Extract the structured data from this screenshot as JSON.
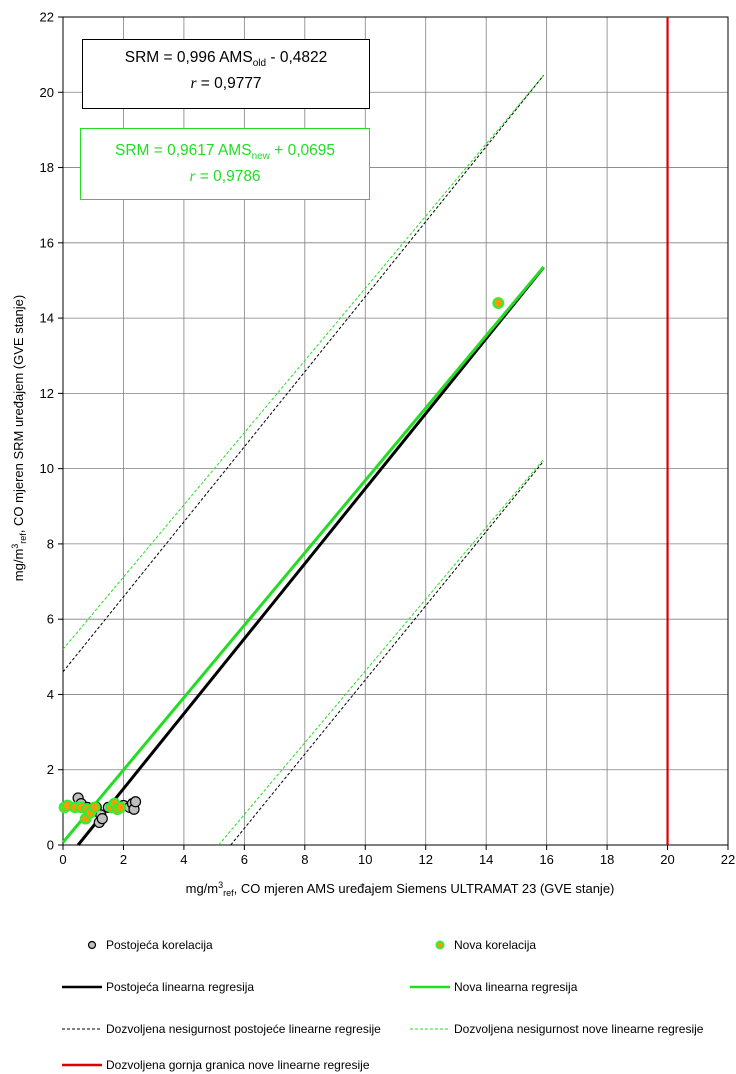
{
  "chart_data": {
    "type": "scatter",
    "xlabel_prefix": "mg/m",
    "xlabel_sup": "3",
    "xlabel_sub": "ref",
    "xlabel_suffix": ", CO mjeren AMS uređajem Siemens ULTRAMAT  23 (GVE stanje)",
    "ylabel_prefix": "mg/m",
    "ylabel_sup": "3",
    "ylabel_sub": "ref",
    "ylabel_suffix": ",  CO mjeren SRM uređajem (GVE stanje)",
    "xlim": [
      0,
      22
    ],
    "ylim": [
      0,
      22
    ],
    "x_ticks": [
      0,
      2,
      4,
      6,
      8,
      10,
      12,
      14,
      16,
      18,
      20,
      22
    ],
    "y_ticks": [
      0,
      2,
      4,
      6,
      8,
      10,
      12,
      14,
      16,
      18,
      20,
      22
    ],
    "grid": true,
    "series": [
      {
        "name": "Postojeća korelacija",
        "kind": "scatter",
        "color": "#bfbfbf",
        "edge": "#000000",
        "x": [
          0.5,
          0.6,
          0.8,
          1.0,
          1.1,
          1.2,
          1.25,
          1.3,
          1.5,
          1.6,
          1.7,
          1.8,
          2.0,
          2.2,
          2.3,
          2.35,
          2.4,
          14.4
        ],
        "y": [
          1.25,
          1.1,
          1.0,
          0.9,
          1.0,
          0.6,
          0.8,
          0.7,
          1.0,
          1.0,
          1.0,
          0.95,
          1.05,
          1.0,
          1.1,
          0.95,
          1.15,
          14.4
        ]
      },
      {
        "name": "Nova korelacija",
        "kind": "scatter",
        "color": "#ff9900",
        "edge": "#33ee33",
        "x": [
          0.05,
          0.15,
          0.4,
          0.6,
          0.75,
          0.8,
          0.9,
          1.05,
          1.6,
          1.7,
          1.8,
          1.9,
          14.4
        ],
        "y": [
          1.0,
          1.05,
          1.0,
          1.0,
          0.7,
          0.95,
          0.85,
          1.0,
          1.0,
          1.1,
          0.95,
          1.0,
          14.4
        ]
      },
      {
        "name": "Postojeća linearna regresija",
        "kind": "line",
        "color": "#000000",
        "x": [
          0.5,
          15.9
        ],
        "y": [
          0.0,
          15.35
        ]
      },
      {
        "name": "Nova linearna regresija",
        "kind": "line",
        "color": "#22dd22",
        "x": [
          0,
          15.9
        ],
        "y": [
          0.07,
          15.36
        ]
      },
      {
        "name": "Dozvoljena nesigurnost postojeće linearne regresije",
        "kind": "dashed-pair",
        "color": "#000000",
        "upper": {
          "x": [
            0,
            15.9
          ],
          "y": [
            4.6,
            20.45
          ]
        },
        "lower": {
          "x": [
            5.55,
            15.9
          ],
          "y": [
            0.0,
            10.2
          ]
        }
      },
      {
        "name": "Dozvoljena nesigurnost nove linearne regresije",
        "kind": "dashed-pair",
        "color": "#22dd22",
        "upper": {
          "x": [
            0,
            15.9
          ],
          "y": [
            5.2,
            20.45
          ]
        },
        "lower": {
          "x": [
            5.15,
            15.9
          ],
          "y": [
            0.0,
            10.25
          ]
        }
      },
      {
        "name": "Dozvoljena gornja granica nove linearne regresije",
        "kind": "vline",
        "color": "#dd0000",
        "x": 20
      }
    ],
    "annotations": {
      "old_eq_prefix": "SRM = 0,996 AMS",
      "old_eq_sub": "old",
      "old_eq_suffix": " - 0,4822",
      "old_r_label": "r",
      "old_r_value": " = 0,9777",
      "new_eq_prefix": "SRM = 0,9617 AMS",
      "new_eq_sub": "new",
      "new_eq_suffix": " + 0,0695",
      "new_r_label": "r",
      "new_r_value": " = 0,9786"
    },
    "legend_placement": "bottom"
  }
}
